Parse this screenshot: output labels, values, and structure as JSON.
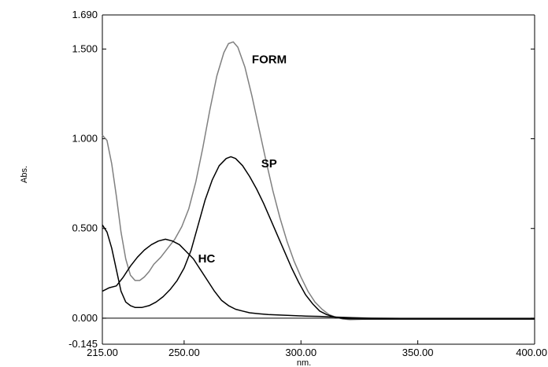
{
  "chart_data": {
    "type": "line",
    "xlabel": "nm.",
    "ylabel": "Abs.",
    "xlim": [
      215.0,
      400.0
    ],
    "ylim": [
      -0.145,
      1.69
    ],
    "x_ticks": [
      215.0,
      250.0,
      300.0,
      350.0,
      400.0
    ],
    "x_tick_labels": [
      "215.00",
      "250.00",
      "300.00",
      "350.00",
      "400.00"
    ],
    "y_ticks": [
      -0.145,
      0.0,
      0.5,
      1.0,
      1.5,
      1.69
    ],
    "y_tick_labels": [
      "-0.145",
      "0.000",
      "0.500",
      "1.000",
      "1.500",
      "1.690"
    ],
    "grid": false,
    "legend": "none",
    "series": [
      {
        "name": "FORM",
        "color": "#808080",
        "label_at": [
          279.0,
          1.42
        ],
        "points": [
          [
            215,
            1.02
          ],
          [
            217,
            0.99
          ],
          [
            219,
            0.86
          ],
          [
            221,
            0.68
          ],
          [
            223,
            0.48
          ],
          [
            225,
            0.33
          ],
          [
            227,
            0.24
          ],
          [
            229,
            0.21
          ],
          [
            231,
            0.21
          ],
          [
            233,
            0.23
          ],
          [
            235,
            0.26
          ],
          [
            237,
            0.3
          ],
          [
            240,
            0.34
          ],
          [
            243,
            0.39
          ],
          [
            246,
            0.44
          ],
          [
            249,
            0.51
          ],
          [
            252,
            0.61
          ],
          [
            255,
            0.76
          ],
          [
            258,
            0.95
          ],
          [
            261,
            1.16
          ],
          [
            264,
            1.35
          ],
          [
            267,
            1.48
          ],
          [
            269,
            1.53
          ],
          [
            271,
            1.54
          ],
          [
            273,
            1.51
          ],
          [
            276,
            1.4
          ],
          [
            279,
            1.24
          ],
          [
            282,
            1.06
          ],
          [
            285,
            0.88
          ],
          [
            288,
            0.71
          ],
          [
            291,
            0.56
          ],
          [
            294,
            0.43
          ],
          [
            297,
            0.32
          ],
          [
            300,
            0.23
          ],
          [
            303,
            0.15
          ],
          [
            306,
            0.09
          ],
          [
            309,
            0.05
          ],
          [
            312,
            0.02
          ],
          [
            315,
            0.005
          ],
          [
            318,
            -0.005
          ],
          [
            321,
            -0.008
          ],
          [
            330,
            -0.005
          ],
          [
            340,
            -0.005
          ],
          [
            360,
            -0.005
          ],
          [
            380,
            -0.005
          ],
          [
            400,
            -0.005
          ]
        ]
      },
      {
        "name": "SP",
        "color": "#000000",
        "label_at": [
          283.0,
          0.84
        ],
        "points": [
          [
            215,
            0.52
          ],
          [
            217,
            0.48
          ],
          [
            219,
            0.39
          ],
          [
            221,
            0.27
          ],
          [
            223,
            0.15
          ],
          [
            225,
            0.09
          ],
          [
            227,
            0.07
          ],
          [
            229,
            0.06
          ],
          [
            232,
            0.06
          ],
          [
            235,
            0.07
          ],
          [
            238,
            0.09
          ],
          [
            241,
            0.12
          ],
          [
            244,
            0.16
          ],
          [
            247,
            0.21
          ],
          [
            250,
            0.28
          ],
          [
            253,
            0.38
          ],
          [
            256,
            0.52
          ],
          [
            259,
            0.66
          ],
          [
            262,
            0.77
          ],
          [
            265,
            0.85
          ],
          [
            268,
            0.89
          ],
          [
            270,
            0.9
          ],
          [
            272,
            0.89
          ],
          [
            275,
            0.85
          ],
          [
            278,
            0.79
          ],
          [
            281,
            0.72
          ],
          [
            284,
            0.64
          ],
          [
            287,
            0.55
          ],
          [
            290,
            0.46
          ],
          [
            293,
            0.37
          ],
          [
            296,
            0.28
          ],
          [
            299,
            0.2
          ],
          [
            302,
            0.13
          ],
          [
            305,
            0.08
          ],
          [
            308,
            0.04
          ],
          [
            311,
            0.02
          ],
          [
            314,
            0.008
          ],
          [
            317,
            0.0
          ],
          [
            320,
            -0.003
          ],
          [
            330,
            -0.005
          ],
          [
            350,
            -0.005
          ],
          [
            380,
            -0.005
          ],
          [
            400,
            -0.005
          ]
        ]
      },
      {
        "name": "HC",
        "color": "#000000",
        "label_at": [
          256.0,
          0.31
        ],
        "points": [
          [
            215,
            0.15
          ],
          [
            218,
            0.17
          ],
          [
            221,
            0.18
          ],
          [
            224,
            0.23
          ],
          [
            227,
            0.29
          ],
          [
            230,
            0.34
          ],
          [
            233,
            0.38
          ],
          [
            236,
            0.41
          ],
          [
            239,
            0.43
          ],
          [
            242,
            0.44
          ],
          [
            245,
            0.43
          ],
          [
            248,
            0.41
          ],
          [
            251,
            0.37
          ],
          [
            254,
            0.33
          ],
          [
            257,
            0.27
          ],
          [
            260,
            0.21
          ],
          [
            263,
            0.15
          ],
          [
            266,
            0.1
          ],
          [
            269,
            0.07
          ],
          [
            272,
            0.05
          ],
          [
            275,
            0.04
          ],
          [
            278,
            0.03
          ],
          [
            282,
            0.025
          ],
          [
            286,
            0.02
          ],
          [
            290,
            0.018
          ],
          [
            296,
            0.015
          ],
          [
            302,
            0.012
          ],
          [
            308,
            0.01
          ],
          [
            315,
            0.006
          ],
          [
            322,
            0.003
          ],
          [
            330,
            0.0
          ],
          [
            345,
            -0.002
          ],
          [
            370,
            -0.003
          ],
          [
            400,
            -0.003
          ]
        ]
      }
    ]
  }
}
